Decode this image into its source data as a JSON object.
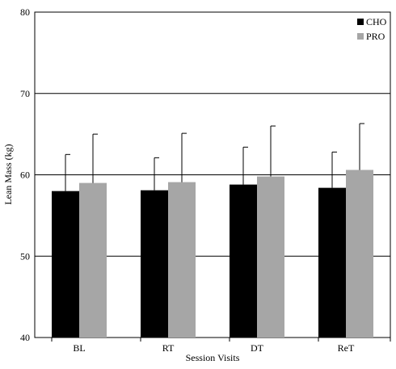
{
  "chart_data": {
    "type": "bar",
    "title": "",
    "xlabel": "Session Visits",
    "ylabel": "Lean Mass (kg)",
    "categories": [
      "BL",
      "RT",
      "DT",
      "ReT"
    ],
    "ylim": [
      40,
      80
    ],
    "yticks": [
      40,
      50,
      60,
      70,
      80
    ],
    "grid": true,
    "legend_position": "top-right",
    "series": [
      {
        "name": "CHO",
        "color": "#000000",
        "values": [
          58.0,
          58.1,
          58.8,
          58.4
        ],
        "errors": [
          4.5,
          4.0,
          4.6,
          4.4
        ]
      },
      {
        "name": "PRO",
        "color": "#a6a6a6",
        "values": [
          59.0,
          59.1,
          59.8,
          60.6
        ],
        "errors": [
          6.0,
          6.0,
          6.2,
          5.7
        ]
      }
    ]
  }
}
